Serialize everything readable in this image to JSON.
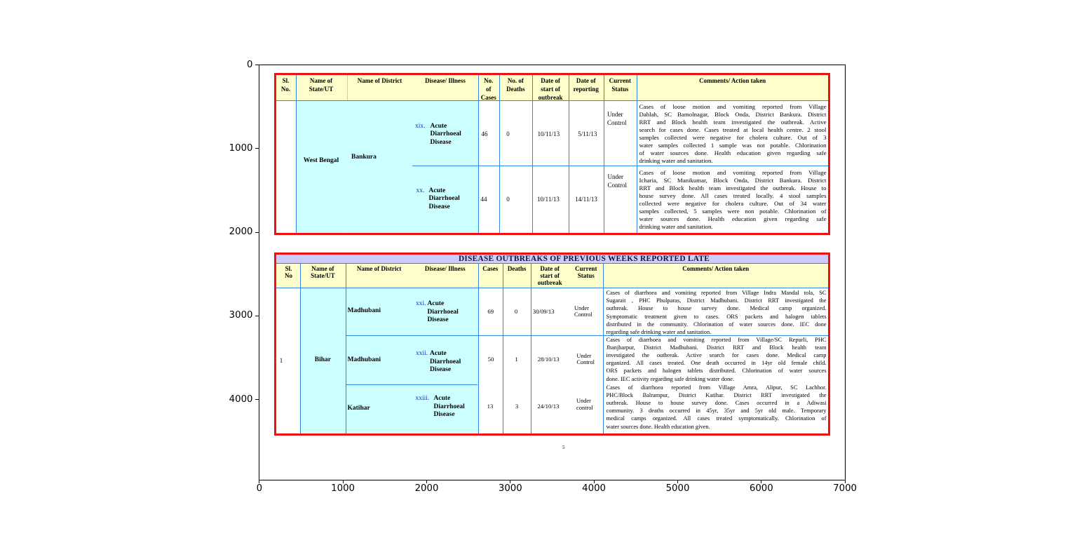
{
  "figure": {
    "x_ticks": [
      "0",
      "1000",
      "2000",
      "3000",
      "4000",
      "5000",
      "6000",
      "7000"
    ],
    "y_ticks": [
      "0",
      "1000",
      "2000",
      "3000",
      "4000"
    ],
    "page_number": "5",
    "colors": {
      "table_border": "#ee1111",
      "grid_line": "#2f86e0",
      "header_fill": "#ffffcc",
      "state_fill": "#ccffff",
      "title_band_fill": "#ccccff",
      "serial_blue": "#1f1fd0"
    }
  },
  "chart_data": {
    "type": "table",
    "title": "",
    "xlabel": "",
    "ylabel": "",
    "x_range": [
      0,
      7000
    ],
    "y_range": [
      4900,
      0
    ],
    "grid": false,
    "note": "matplotlib imshow of a scanned outbreak-report document page",
    "tables": [
      {
        "columns": [
          "Sl. No.",
          "Name of State/UT",
          "Name of District",
          "Disease/ Illness",
          "No. of Cases",
          "No. of Deaths",
          "Date of start of outbreak",
          "Date of reporting",
          "Current Status",
          "Comments/ Action taken"
        ],
        "rows": [
          [
            "",
            "West Bengal",
            "Bankura",
            "xix. Acute Diarrhoeal Disease",
            46,
            0,
            "10/11/13",
            "5/11/13",
            "Under Control",
            "Cases of loose motion and vomiting reported from Village Dahlah, SC Bamolnagar, Block Onda, District Bankura."
          ],
          [
            "",
            "West Bengal",
            "Bankura",
            "xx. Acute Diarrhoeal Disease",
            44,
            0,
            "10/11/13",
            "14/11/13",
            "Under Control",
            "Cases of loose motion and vomiting reported from Village Icharia, SC Manikumar, Block Onda, District Bankura."
          ]
        ]
      },
      {
        "title": "DISEASE OUTBREAKS OF PREVIOUS WEEKS REPORTED LATE",
        "columns": [
          "Sl. No",
          "Name of State/UT",
          "Name of District",
          "Disease/ Illness",
          "Cases",
          "Deaths",
          "Date of start of outbreak",
          "Current Status",
          "Comments/ Action taken"
        ],
        "rows": [
          [
            "1",
            "Bihar",
            "Madhubani",
            "xxi. Acute Diarrhoeal Disease",
            69,
            0,
            "30/09/13",
            "Under Control",
            "Cases of diarrhoea and vomiting reported from Village Indra Mandal tola, SC Sugarait, PHC Phulparas, District Madhubani."
          ],
          [
            "1",
            "Bihar",
            "Madhubani",
            "xxii. Acute Diarrhoeal Disease",
            50,
            1,
            "28/10/13",
            "Under Control",
            "Cases of diarrhoea and vomiting reported from Village/SC Repurli, PHC Jhanjharpur, District Madhubani."
          ],
          [
            "1",
            "Bihar",
            "Katihar",
            "xxiii. Acute Diarrhoeal Disease",
            13,
            3,
            "24/10/13",
            "Under control",
            "Cases of diarrhoea reported from Village Amra, Alipur, SC Lachhor, PHC/Block Balrampur, District Katihar."
          ]
        ]
      }
    ]
  },
  "table1": {
    "headers": {
      "sl": [
        "Sl.",
        "No."
      ],
      "state": [
        "Name of",
        "State/UT"
      ],
      "district": "Name of District",
      "disease": "Disease/ Illness",
      "cases": [
        "No.",
        "of",
        "Cases"
      ],
      "deaths": [
        "No. of",
        "Deaths"
      ],
      "date_start": [
        "Date of",
        "start of",
        "outbreak"
      ],
      "date_report": [
        "Date of",
        "reporting"
      ],
      "status": [
        "Current",
        "Status"
      ],
      "comments": "Comments/ Action taken"
    },
    "state": "West Bengal",
    "district": "Bankura",
    "rows": [
      {
        "num": "xix.",
        "disease": [
          "Acute",
          "Diarrhoeal",
          "Disease"
        ],
        "cases": "46",
        "deaths": "0",
        "date_start": "10/11/13",
        "date_report": "5/11/13",
        "status": [
          "Under",
          "Control"
        ],
        "comment_lines": [
          "Cases of loose motion and vomiting reported from Village",
          "Dahlah, SC Bamolnagar, Block Onda, District Bankura. District",
          "RRT and Block health team investigated the outbreak. Active",
          "search for cases done. Cases treated at local health centre. 2 stool",
          "samples collected were negative for cholera culture. Out of 3",
          "water samples collected 1 sample was not potable. Chlorination",
          "of water sources done. Health education given regarding safe",
          "drinking water and sanitation."
        ]
      },
      {
        "num": "xx.",
        "disease": [
          "Acute",
          "Diarrhoeal",
          "Disease"
        ],
        "cases": "44",
        "deaths": "0",
        "date_start": "10/11/13",
        "date_report": "14/11/13",
        "status": [
          "Under",
          "Control"
        ],
        "comment_lines": [
          "Cases of loose motion and vomiting reported from Village",
          "Icharia, SC Manikumar, Block Onda, District Bankura. District",
          "RRT and Block health team investigated the outbreak. House to",
          "house survey done. All cases treated locally. 4 stool samples",
          "collected were negative for cholera culture. Out of 34 water",
          "samples collected, 5 samples were non potable. Chlorination of",
          "water sources done. Health education given regarding safe",
          "drinking water and sanitation."
        ]
      }
    ]
  },
  "table2": {
    "title": "DISEASE OUTBREAKS  OF PREVIOUS WEEKS REPORTED LATE",
    "headers": {
      "sl": [
        "Sl.",
        "No"
      ],
      "state": [
        "Name of",
        "State/UT"
      ],
      "district": "Name of District",
      "disease": "Disease/ Illness",
      "cases": "Cases",
      "deaths": "Deaths",
      "date_start": [
        "Date of",
        "start of",
        "outbreak"
      ],
      "status": [
        "Current",
        "Status"
      ],
      "comments": "Comments/ Action taken"
    },
    "sl": "1",
    "state": "Bihar",
    "rows": [
      {
        "district": "Madhubani",
        "num": "xxi.",
        "disease": [
          "Acute",
          "Diarrhoeal",
          "Disease"
        ],
        "cases": "69",
        "deaths": "0",
        "date_start": "30/09/13",
        "status": [
          "Under",
          "Control"
        ],
        "comment_lines": [
          "Cases of diarrhoea and vomiting reported from Village Indra Mandal tola, SC",
          "Sugarait , PHC Phulparas, District Madhubani. District RRT investigated the",
          "outbreak. House to house survey done. Medical camp organized.",
          "Symptomatic treatment given to cases. ORS packets and halogen tablets",
          "distributed in the community. Chlorination of water sources done. IEC done",
          "regarding safe drinking water and sanitation."
        ]
      },
      {
        "district": "Madhubani",
        "num": "xxii.",
        "disease": [
          "Acute",
          "Diarrhoeal",
          "Disease"
        ],
        "cases": "50",
        "deaths": "1",
        "date_start": "28/10/13",
        "status": [
          "Under",
          "Control"
        ],
        "comment_lines": [
          "Cases of diarrhoea and vomiting reported from Village/SC Repurli, PHC",
          "Jhanjharpur, District Madhubani. District RRT and Block health team",
          "investigated the outbreak. Active search for cases done. Medical camp",
          "organized. All cases treated. One death occurred in 14yr old female child.",
          "ORS packets and halogen tablets distributed. Chlorination of water sources",
          "done. IEC activity regarding safe drinking water done."
        ]
      },
      {
        "district": "Katihar",
        "num": "xxiii.",
        "disease": [
          "Acute",
          "Diarrhoeal",
          "Disease"
        ],
        "cases": "13",
        "deaths": "3",
        "date_start": "24/10/13",
        "status": [
          "Under",
          "control"
        ],
        "comment_lines": [
          "Cases of diarrhoea reported from Village Amra, Alipur, SC Lachhor.",
          "PHC/Block Balrampur, District Katihar. District RRT investigated the",
          "outbreak.  House to house survey done. Cases occurred in a Adiwasi",
          "community. 3 deaths occurred in 45yr, 35yr and 5yr old male. Temporary",
          "medical camps organized. All cases treated symptomatically. Chlorination of",
          "water sources done. Health education given."
        ]
      }
    ]
  }
}
